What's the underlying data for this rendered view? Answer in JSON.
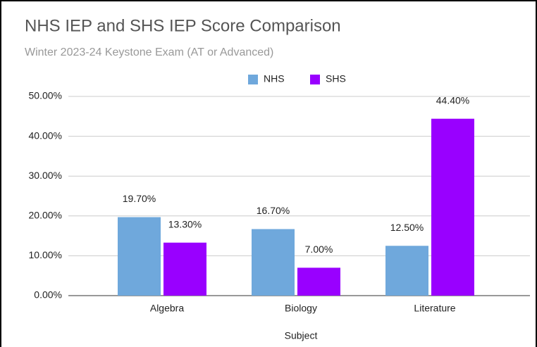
{
  "chart_data": {
    "type": "bar",
    "title": "NHS IEP and SHS IEP Score Comparison",
    "subtitle": "Winter 2023-24 Keystone Exam (AT or Advanced)",
    "x_label": "Subject",
    "categories": [
      "Algebra",
      "Biology",
      "Literature"
    ],
    "series": [
      {
        "name": "NHS",
        "color": "#6fa8dc",
        "values": [
          19.7,
          16.7,
          12.5
        ],
        "value_labels": [
          "19.70%",
          "16.70%",
          "12.50%"
        ]
      },
      {
        "name": "SHS",
        "color": "#9900ff",
        "values": [
          13.3,
          7.0,
          44.4
        ],
        "value_labels": [
          "13.30%",
          "7.00%",
          "44.40%"
        ]
      }
    ],
    "ylim": [
      0,
      50
    ],
    "yticks": [
      {
        "value": 0,
        "label": "0.00%"
      },
      {
        "value": 10,
        "label": "10.00%"
      },
      {
        "value": 20,
        "label": "20.00%"
      },
      {
        "value": 30,
        "label": "30.00%"
      },
      {
        "value": 40,
        "label": "40.00%"
      },
      {
        "value": 50,
        "label": "50.00%"
      }
    ],
    "grid": true,
    "legend": "top"
  }
}
